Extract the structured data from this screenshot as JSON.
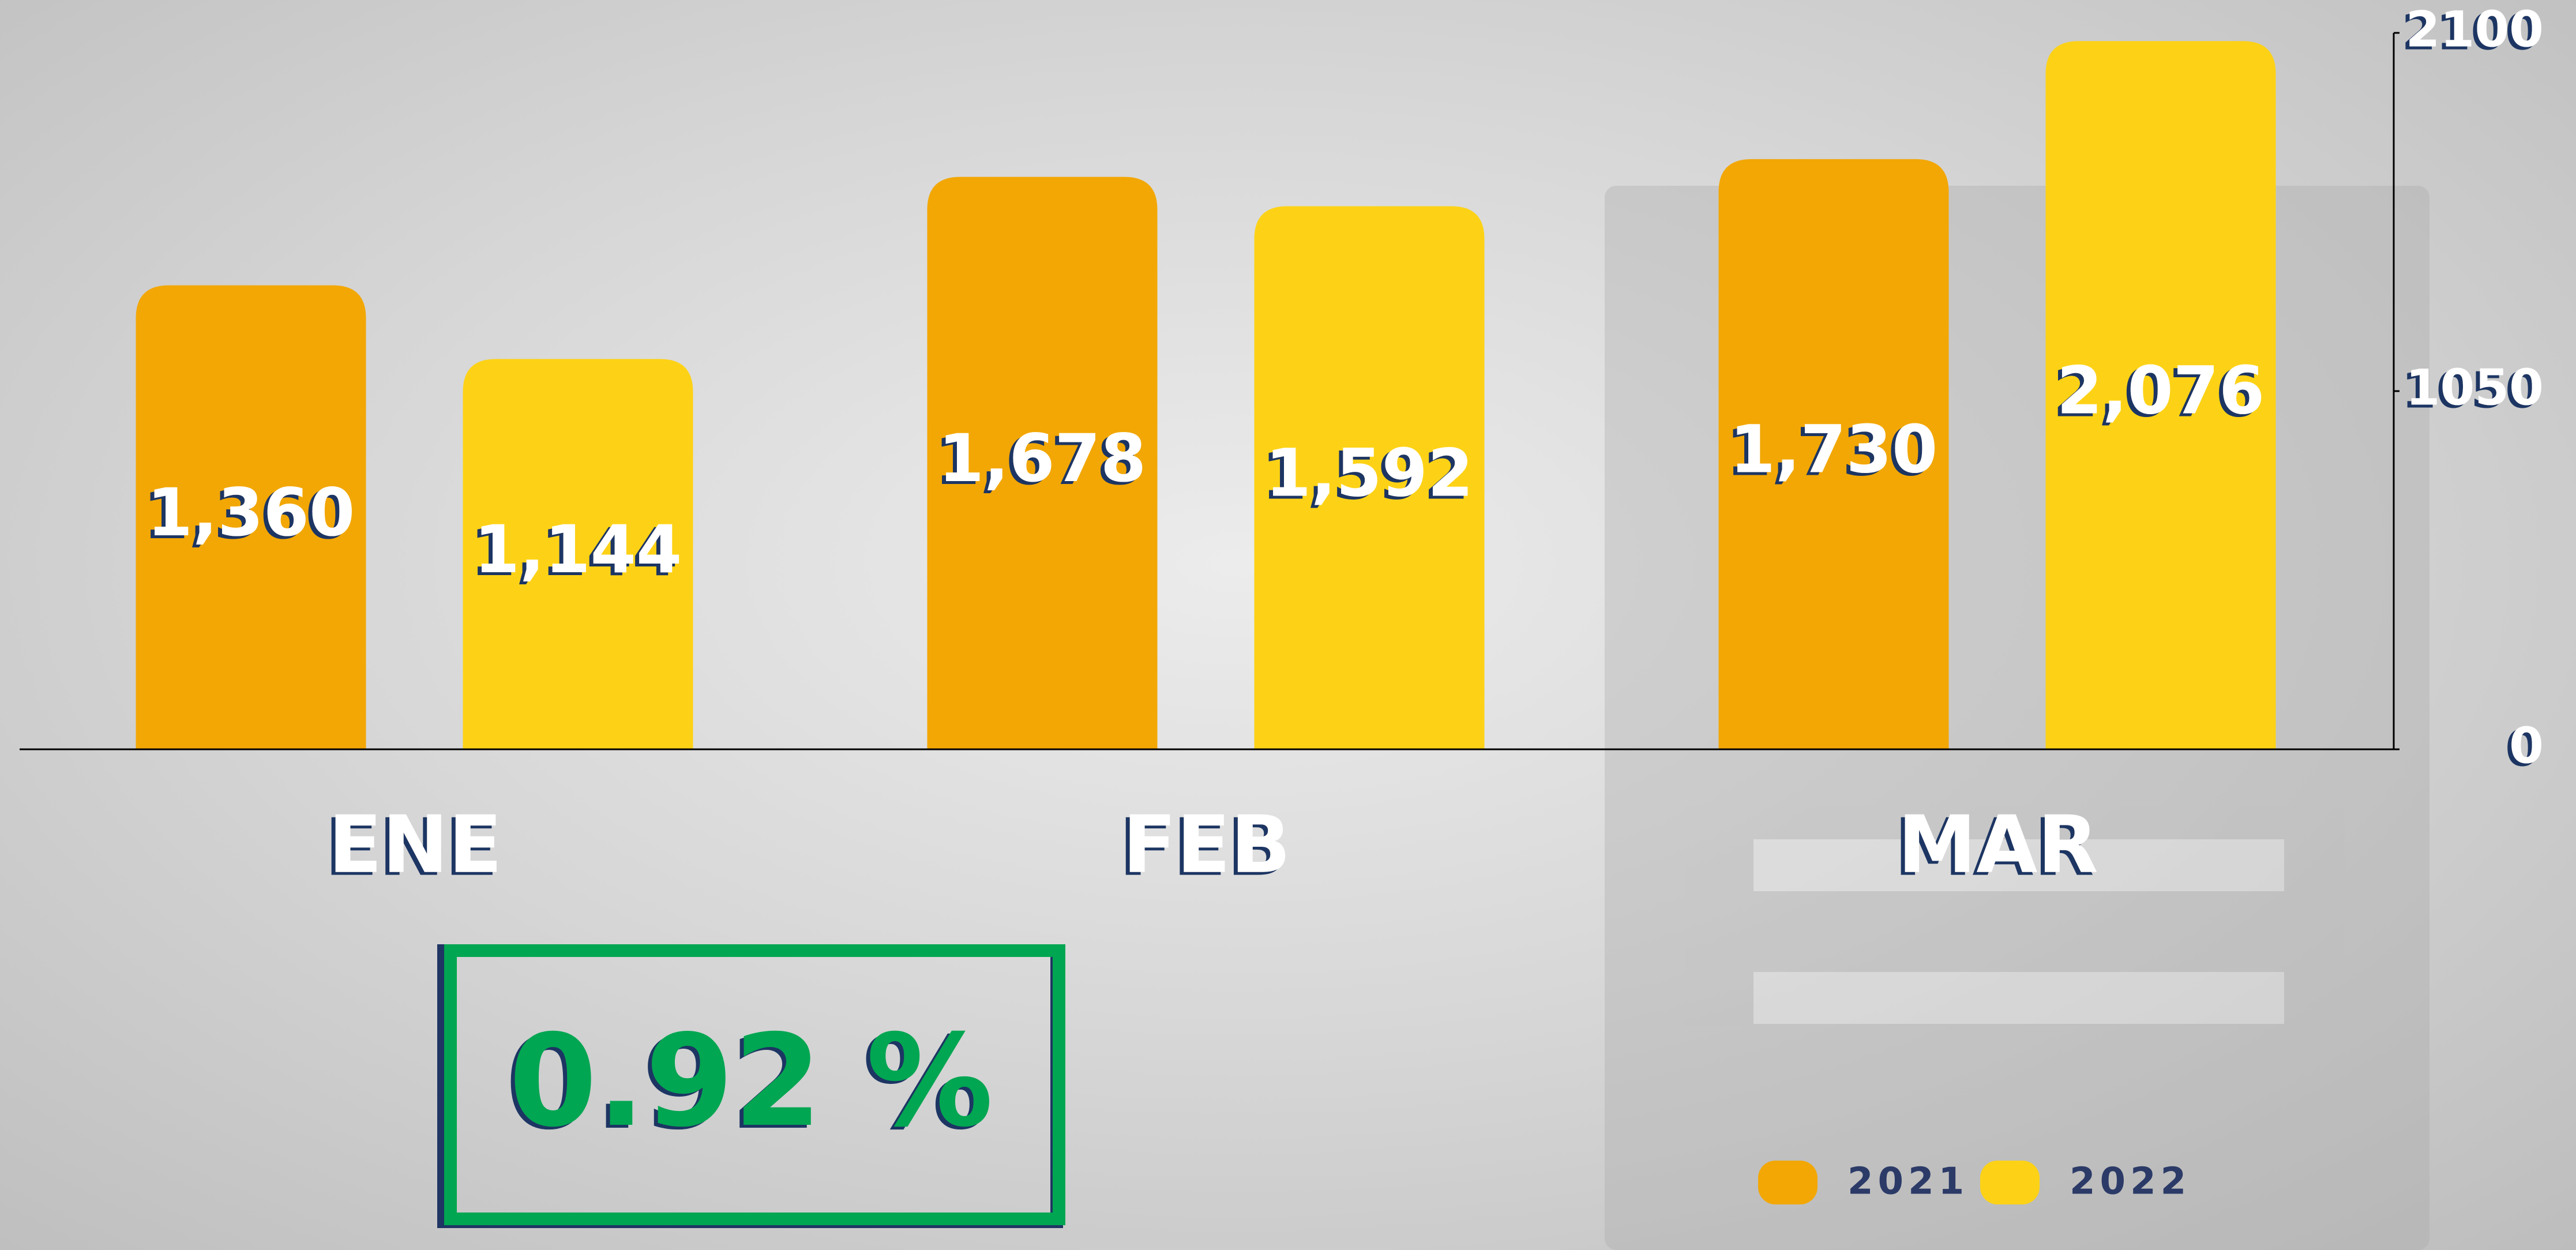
{
  "chart_data": {
    "type": "bar",
    "categories": [
      "ENE",
      "FEB",
      "MAR"
    ],
    "series": [
      {
        "name": "2021",
        "color": "#f2a705",
        "values": [
          1360,
          1678,
          1730
        ],
        "value_labels": [
          "1,360",
          "1,678",
          "1,730"
        ]
      },
      {
        "name": "2022",
        "color": "#fdd216",
        "values": [
          1144,
          1592,
          2076
        ],
        "value_labels": [
          "1,144",
          "1,592",
          "2,076"
        ]
      }
    ],
    "ylim": [
      0,
      2100
    ],
    "yticks": [
      0,
      1050,
      2100
    ],
    "annotation": "0.92 %"
  }
}
